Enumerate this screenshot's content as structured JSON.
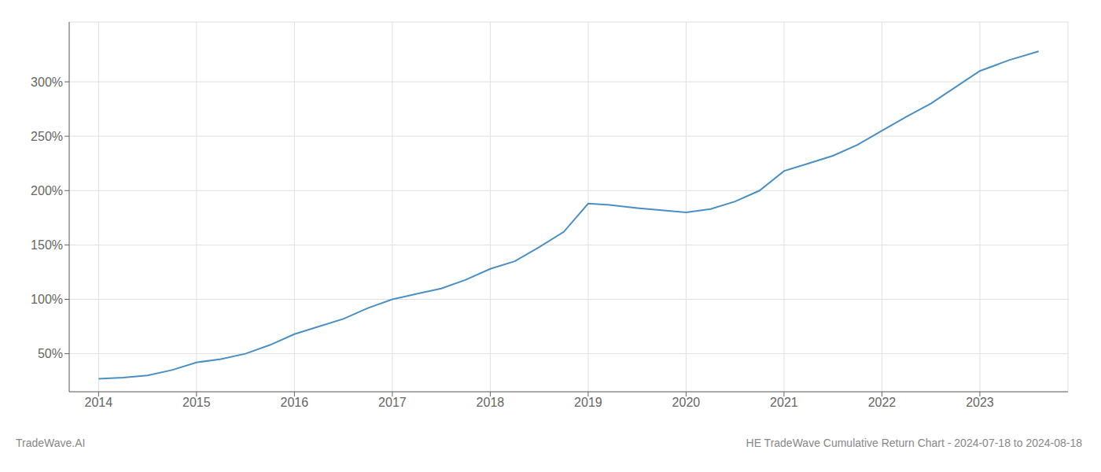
{
  "chart_data": {
    "type": "line",
    "title": "HE TradeWave Cumulative Return Chart - 2024-07-18 to 2024-08-18",
    "annotations": [
      "TradeWave.AI"
    ],
    "x": [
      2014.0,
      2014.25,
      2014.5,
      2014.75,
      2015.0,
      2015.25,
      2015.5,
      2015.75,
      2016.0,
      2016.25,
      2016.5,
      2016.75,
      2017.0,
      2017.25,
      2017.5,
      2017.75,
      2018.0,
      2018.25,
      2018.5,
      2018.75,
      2019.0,
      2019.2,
      2019.5,
      2019.75,
      2020.0,
      2020.25,
      2020.5,
      2020.75,
      2021.0,
      2021.25,
      2021.5,
      2021.75,
      2022.0,
      2022.25,
      2022.5,
      2022.75,
      2023.0,
      2023.3,
      2023.6
    ],
    "values": [
      27,
      28,
      30,
      35,
      42,
      45,
      50,
      58,
      68,
      75,
      82,
      92,
      100,
      105,
      110,
      118,
      128,
      135,
      148,
      162,
      188,
      187,
      184,
      182,
      180,
      183,
      190,
      200,
      218,
      225,
      232,
      242,
      255,
      268,
      280,
      295,
      310,
      320,
      328
    ],
    "color": "#4a90c4",
    "xlim": [
      2013.7,
      2023.9
    ],
    "ylim": [
      15,
      355
    ],
    "xticks": [
      2014,
      2015,
      2016,
      2017,
      2018,
      2019,
      2020,
      2021,
      2022,
      2023
    ],
    "yticks": [
      {
        "value": 50,
        "label": "50%"
      },
      {
        "value": 100,
        "label": "100%"
      },
      {
        "value": 150,
        "label": "150%"
      },
      {
        "value": 200,
        "label": "200%"
      },
      {
        "value": 250,
        "label": "250%"
      },
      {
        "value": 300,
        "label": "300%"
      }
    ],
    "grid": true
  }
}
